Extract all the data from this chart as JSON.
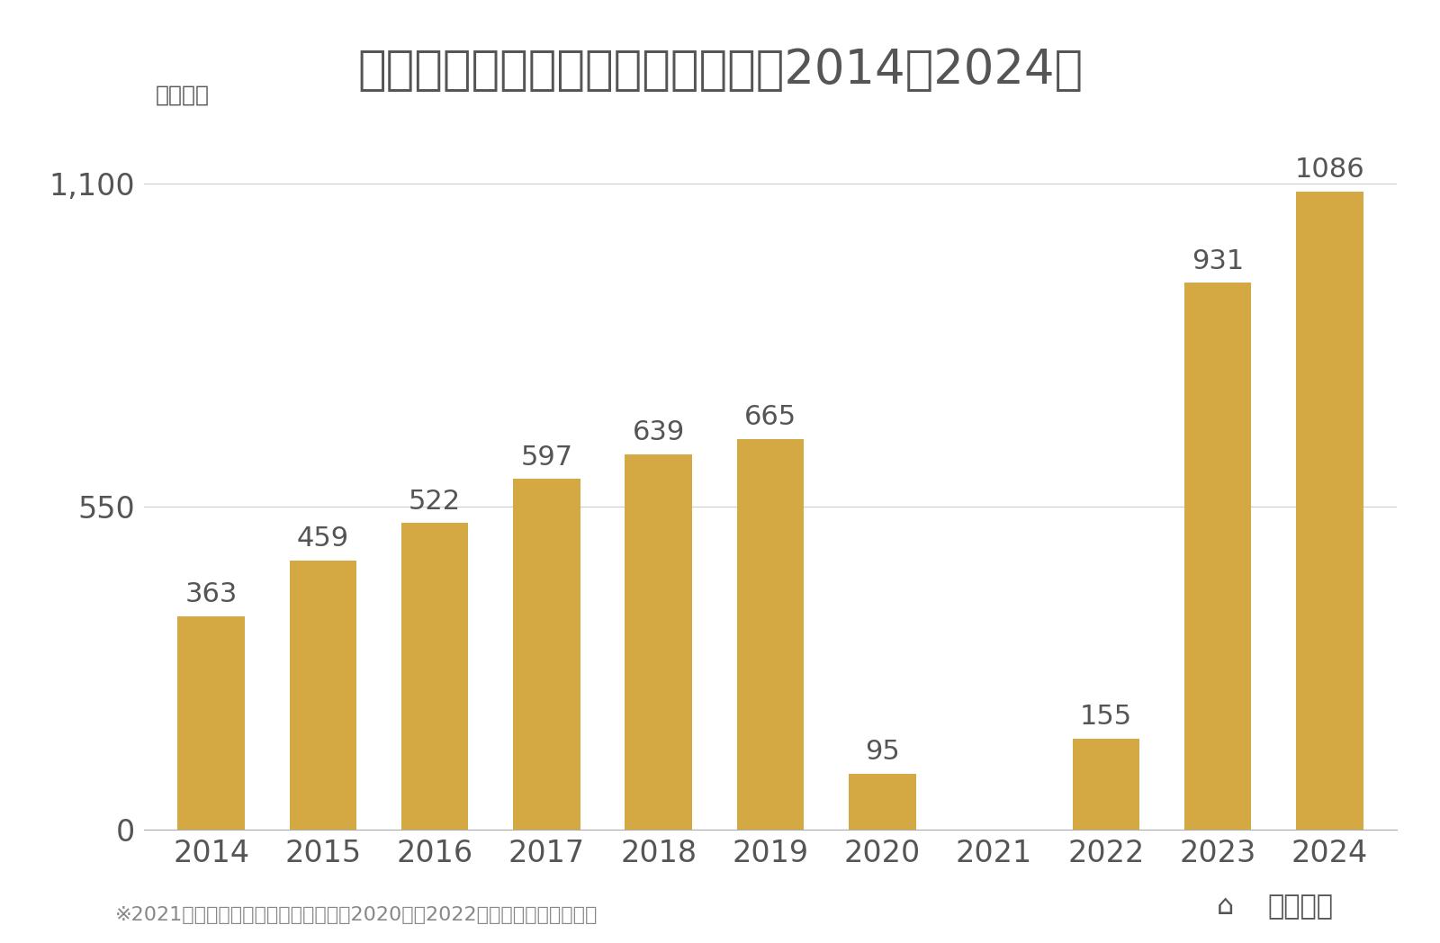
{
  "title": "訪日マレーシア人消費額の推移（2014〜2024）",
  "ylabel_unit": "（億円）",
  "years": [
    2014,
    2015,
    2016,
    2017,
    2018,
    2019,
    2020,
    2021,
    2022,
    2023,
    2024
  ],
  "values": [
    363,
    459,
    522,
    597,
    639,
    665,
    95,
    0,
    155,
    931,
    1086
  ],
  "bar_color": "#D4A843",
  "yticks": [
    0,
    550,
    1100
  ],
  "ylim": [
    0,
    1220
  ],
  "background_color": "#ffffff",
  "text_color": "#555555",
  "title_fontsize": 38,
  "label_fontsize": 22,
  "tick_fontsize": 24,
  "bar_label_fontsize": 22,
  "unit_fontsize": 18,
  "footnote": "※2021年は国別消費額のデータなし。2020年、2022年は観光庁の試算値。",
  "footnote_fontsize": 16,
  "logo_text": "訪日ラボ",
  "logo_fontsize": 22
}
